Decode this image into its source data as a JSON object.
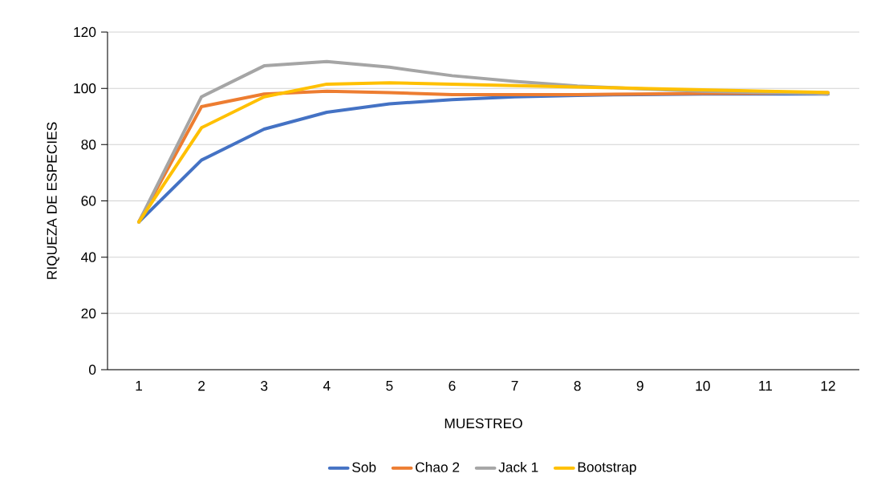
{
  "chart_data": {
    "type": "line",
    "xlabel": "MUESTREO",
    "ylabel": "RIQUEZA DE ESPECIES",
    "categories": [
      "1",
      "2",
      "3",
      "4",
      "5",
      "6",
      "7",
      "8",
      "9",
      "10",
      "11",
      "12"
    ],
    "series": [
      {
        "name": "Sob",
        "color": "#4472c4",
        "values": [
          52.5,
          74.5,
          85.5,
          91.5,
          94.5,
          96,
          97,
          97.5,
          97.8,
          98,
          98,
          98
        ]
      },
      {
        "name": "Chao 2",
        "color": "#ed7d31",
        "values": [
          52.5,
          93.5,
          98,
          99,
          98.5,
          97.8,
          97.8,
          97.8,
          98,
          98.2,
          98.3,
          98.5
        ]
      },
      {
        "name": "Jack 1",
        "color": "#a5a5a5",
        "values": [
          52.5,
          97,
          108,
          109.5,
          107.5,
          104.5,
          102.5,
          100.8,
          99.8,
          99,
          98.5,
          98
        ]
      },
      {
        "name": "Bootstrap",
        "color": "#ffc000",
        "values": [
          52.5,
          86,
          97,
          101.5,
          102,
          101.5,
          101,
          100.5,
          100,
          99.5,
          99,
          98.5
        ]
      }
    ],
    "ylim": [
      0,
      120
    ],
    "yticks": [
      0,
      20,
      40,
      60,
      80,
      100,
      120
    ],
    "grid": "y",
    "legend": "bottom"
  }
}
